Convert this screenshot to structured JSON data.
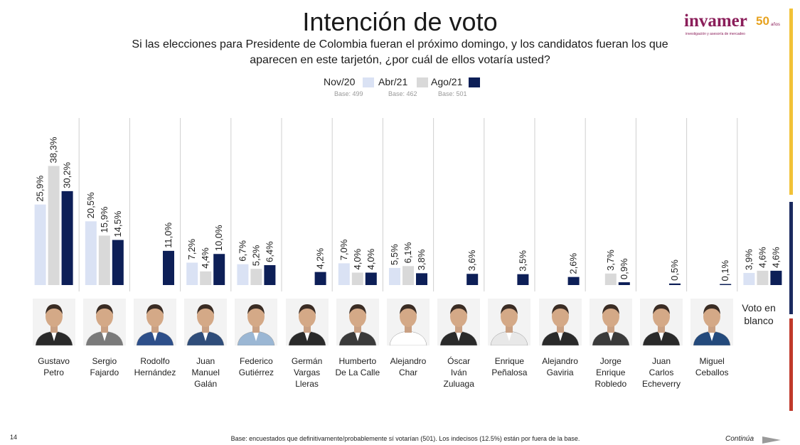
{
  "header": {
    "title": "Intención de voto",
    "subtitle": "Si las elecciones para Presidente de Colombia fueran el próximo domingo, y los candidatos fueran los que aparecen en este tarjetón, ¿por cuál de ellos votaría usted?"
  },
  "logo": {
    "main": "invamer",
    "fifty": "50",
    "years": "años",
    "tagline": "investigación y asesoría de mercadeo"
  },
  "legend": [
    {
      "label": "Nov/20",
      "base": "Base: 499",
      "color": "#dae2f4"
    },
    {
      "label": "Abr/21",
      "base": "Base: 462",
      "color": "#d9d9d9"
    },
    {
      "label": "Ago/21",
      "base": "Base: 501",
      "color": "#0d1f57"
    }
  ],
  "chart_data": {
    "type": "bar",
    "title": "Intención de voto",
    "value_suffix": "%",
    "categories": [
      "Gustavo Petro",
      "Sergio Fajardo",
      "Rodolfo Hernández",
      "Juan Manuel Galán",
      "Federico Gutiérrez",
      "Germán Vargas Lleras",
      "Humberto De La Calle",
      "Alejandro Char",
      "Óscar Iván Zuluaga",
      "Enrique Peñalosa",
      "Alejandro Gaviria",
      "Jorge Enrique Robledo",
      "Juan Carlos Echeverry",
      "Miguel Ceballos",
      "Voto en blanco"
    ],
    "series": [
      {
        "name": "Nov/20",
        "color": "#dae2f4",
        "values": [
          25.9,
          20.5,
          null,
          7.2,
          6.7,
          null,
          7.0,
          5.5,
          null,
          null,
          null,
          null,
          null,
          null,
          3.9
        ]
      },
      {
        "name": "Abr/21",
        "color": "#d9d9d9",
        "values": [
          38.3,
          15.9,
          null,
          4.4,
          5.2,
          null,
          4.0,
          6.1,
          null,
          null,
          null,
          3.7,
          null,
          null,
          4.6
        ]
      },
      {
        "name": "Ago/21",
        "color": "#0d1f57",
        "values": [
          30.2,
          14.5,
          11.0,
          10.0,
          6.4,
          4.2,
          4.0,
          3.8,
          3.6,
          3.5,
          2.6,
          0.9,
          0.5,
          0.1,
          4.6
        ]
      }
    ],
    "labels": [
      [
        "25,9%",
        "38,3%",
        "30,2%"
      ],
      [
        "20,5%",
        "15,9%",
        "14,5%"
      ],
      [
        "",
        "",
        "11,0%"
      ],
      [
        "7,2%",
        "4,4%",
        "10,0%"
      ],
      [
        "6,7%",
        "5,2%",
        "6,4%"
      ],
      [
        "",
        "",
        "4,2%"
      ],
      [
        "7,0%",
        "4,0%",
        "4,0%"
      ],
      [
        "5,5%",
        "6,1%",
        "3,8%"
      ],
      [
        "",
        "",
        "3,6%"
      ],
      [
        "",
        "",
        "3,5%"
      ],
      [
        "",
        "",
        "2,6%"
      ],
      [
        "",
        "3,7%",
        "0,9%"
      ],
      [
        "",
        "",
        "0,5%"
      ],
      [
        "",
        "",
        "0,1%"
      ],
      [
        "3,9%",
        "4,6%",
        "4,6%"
      ]
    ],
    "ylim": [
      0,
      40
    ],
    "grid": false,
    "legend_position": "top-center"
  },
  "candidates": [
    {
      "name": "Gustavo Petro",
      "lines": [
        "Gustavo",
        "Petro"
      ],
      "suit": "#2a2a2a"
    },
    {
      "name": "Sergio Fajardo",
      "lines": [
        "Sergio",
        "Fajardo"
      ],
      "suit": "#7a7a7a"
    },
    {
      "name": "Rodolfo Hernández",
      "lines": [
        "Rodolfo",
        "Hernández"
      ],
      "suit": "#2d4f8a"
    },
    {
      "name": "Juan Manuel Galán",
      "lines": [
        "Juan",
        "Manuel",
        "Galán"
      ],
      "suit": "#2f4d7a"
    },
    {
      "name": "Federico Gutiérrez",
      "lines": [
        "Federico",
        "Gutiérrez"
      ],
      "suit": "#9bb7d4"
    },
    {
      "name": "Germán Vargas Lleras",
      "lines": [
        "Germán",
        "Vargas",
        "Lleras"
      ],
      "suit": "#2a2a2a"
    },
    {
      "name": "Humberto De La Calle",
      "lines": [
        "Humberto",
        "De La Calle"
      ],
      "suit": "#3a3a3a"
    },
    {
      "name": "Alejandro Char",
      "lines": [
        "Alejandro",
        "Char"
      ],
      "suit": "#ffffff"
    },
    {
      "name": "Óscar Iván Zuluaga",
      "lines": [
        "Óscar",
        "Iván",
        "Zuluaga"
      ],
      "suit": "#2a2a2a"
    },
    {
      "name": "Enrique Peñalosa",
      "lines": [
        "Enrique",
        "Peñalosa"
      ],
      "suit": "#e8e8e8"
    },
    {
      "name": "Alejandro Gaviria",
      "lines": [
        "Alejandro",
        "Gaviria"
      ],
      "suit": "#2a2a2a"
    },
    {
      "name": "Jorge Enrique Robledo",
      "lines": [
        "Jorge",
        "Enrique",
        "Robledo"
      ],
      "suit": "#3a3a3a"
    },
    {
      "name": "Juan Carlos Echeverry",
      "lines": [
        "Juan",
        "Carlos",
        "Echeverry"
      ],
      "suit": "#2a2a2a"
    },
    {
      "name": "Miguel Ceballos",
      "lines": [
        "Miguel",
        "Ceballos"
      ],
      "suit": "#244a7c"
    }
  ],
  "blank_vote": {
    "line1": "Voto en",
    "line2": "blanco"
  },
  "footer": {
    "page_number": "14",
    "note": "Base: encuestados que definitivamente/probablemente sí votarían (501). Los indecisos (12.5%) están por fuera de la base.",
    "continue": "Continúa"
  },
  "accent_colors": {
    "yellow": "#f2c237",
    "navy": "#1b2a5f",
    "red": "#c0392b"
  }
}
